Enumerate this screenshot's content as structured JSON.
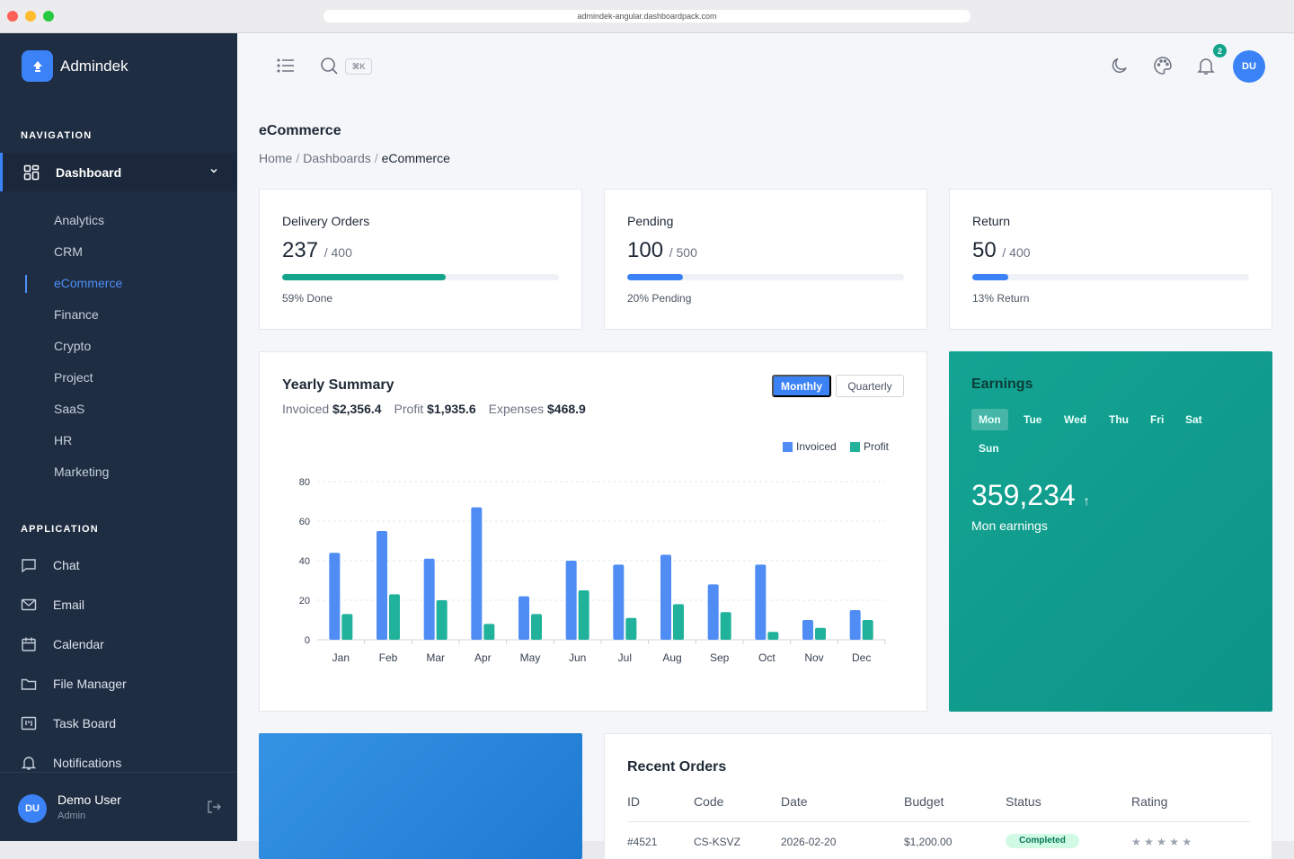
{
  "browser": {
    "url": "admindek-angular.dashboardpack.com"
  },
  "brand": {
    "name": "Admindek"
  },
  "nav": {
    "section_navigation": "NAVIGATION",
    "dashboard_label": "Dashboard",
    "dashboard_items": [
      "Analytics",
      "CRM",
      "eCommerce",
      "Finance",
      "Crypto",
      "Project",
      "SaaS",
      "HR",
      "Marketing"
    ],
    "active_item": "eCommerce",
    "section_application": "APPLICATION",
    "app_items": [
      "Chat",
      "Email",
      "Calendar",
      "File Manager",
      "Task Board",
      "Notifications"
    ]
  },
  "user": {
    "initials": "DU",
    "name": "Demo User",
    "role": "Admin"
  },
  "topbar": {
    "search_shortcut": "⌘K",
    "notification_count": "2",
    "avatar_initials": "DU"
  },
  "page": {
    "title": "eCommerce",
    "breadcrumb": {
      "home": "Home",
      "section": "Dashboards",
      "current": "eCommerce",
      "separator": "/"
    }
  },
  "stats": [
    {
      "title": "Delivery Orders",
      "value": "237",
      "total": "/ 400",
      "progress": 0.59,
      "color": "#14a38b",
      "note": "59% Done"
    },
    {
      "title": "Pending",
      "value": "100",
      "total": "/ 500",
      "progress": 0.2,
      "color": "#3b82f6",
      "note": "20% Pending"
    },
    {
      "title": "Return",
      "value": "50",
      "total": "/ 400",
      "progress": 0.13,
      "color": "#3b82f6",
      "note": "13% Return"
    }
  ],
  "yearly_summary": {
    "title": "Yearly Summary",
    "invoiced_label": "Invoiced",
    "invoiced_value": "$2,356.4",
    "profit_label": "Profit",
    "profit_value": "$1,935.6",
    "expenses_label": "Expenses",
    "expenses_value": "$468.9",
    "toggle_monthly": "Monthly",
    "toggle_quarterly": "Quarterly"
  },
  "chart_data": {
    "type": "bar",
    "categories": [
      "Jan",
      "Feb",
      "Mar",
      "Apr",
      "May",
      "Jun",
      "Jul",
      "Aug",
      "Sep",
      "Oct",
      "Nov",
      "Dec"
    ],
    "series": [
      {
        "name": "Invoiced",
        "color": "#4f8df5",
        "values": [
          44,
          55,
          41,
          67,
          22,
          40,
          38,
          43,
          28,
          38,
          10,
          15
        ]
      },
      {
        "name": "Profit",
        "color": "#20b29b",
        "values": [
          13,
          23,
          20,
          8,
          13,
          25,
          11,
          18,
          14,
          4,
          6,
          10
        ]
      }
    ],
    "ylim": [
      0,
      80
    ],
    "yticks": [
      0,
      20,
      40,
      60,
      80
    ],
    "grid": true,
    "legend_position": "top-right",
    "xlabel": "",
    "ylabel": "",
    "title": ""
  },
  "earnings": {
    "title": "Earnings",
    "days": [
      "Mon",
      "Tue",
      "Wed",
      "Thu",
      "Fri",
      "Sat",
      "Sun"
    ],
    "selected_day": "Mon",
    "value": "359,234",
    "trend": "↑",
    "subtitle": "Mon earnings"
  },
  "recent_orders": {
    "title": "Recent Orders",
    "columns": [
      "ID",
      "Code",
      "Date",
      "Budget",
      "Status",
      "Rating"
    ],
    "first_row_partial": {
      "id": "#4521",
      "code": "CS-KSVZ",
      "date": "2026-02-20",
      "budget": "$1,200.00",
      "status": "Completed",
      "rating": "★ ★ ★ ★ ★"
    }
  }
}
